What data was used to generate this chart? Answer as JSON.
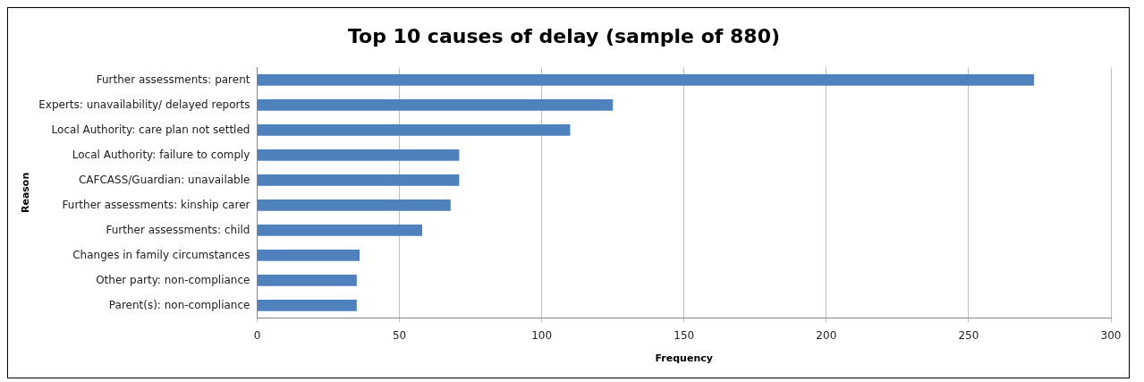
{
  "chart_data": {
    "type": "bar",
    "orientation": "horizontal",
    "title": "Top 10 causes of delay (sample of 880)",
    "xlabel": "Frequency",
    "ylabel": "Reason",
    "categories": [
      "Further assessments: parent",
      "Experts: unavailability/ delayed reports",
      "Local Authority: care plan not settled",
      "Local Authority: failure to comply",
      "CAFCASS/Guardian: unavailable",
      "Further assessments: kinship carer",
      "Further assessments: child",
      "Changes in family circumstances",
      "Other party: non-compliance",
      "Parent(s): non-compliance"
    ],
    "values": [
      273,
      125,
      110,
      71,
      71,
      68,
      58,
      36,
      35,
      35
    ],
    "color": "#4f81bd",
    "xlim": [
      0,
      300
    ],
    "xticks": [
      0,
      50,
      100,
      150,
      200,
      250,
      300
    ],
    "grid": "x",
    "legend": false
  }
}
